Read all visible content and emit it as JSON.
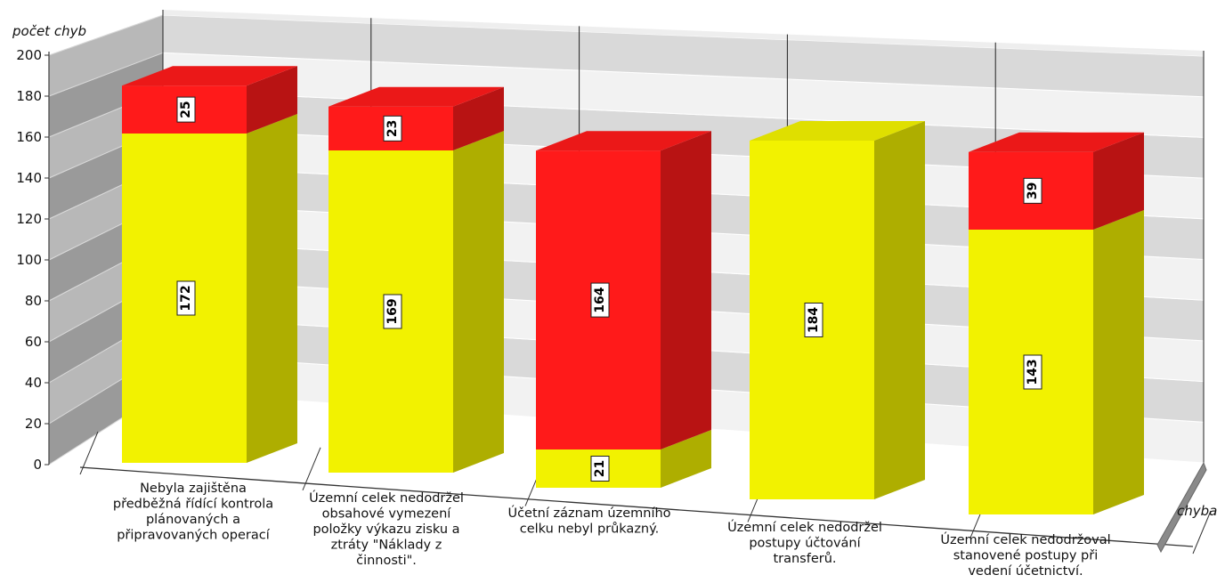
{
  "chart_data": {
    "type": "bar",
    "stacked": true,
    "three_d": true,
    "ylabel": "počet chyb",
    "xlabel": "chyba",
    "ylim": [
      0,
      200
    ],
    "yticks": [
      0,
      20,
      40,
      60,
      80,
      100,
      120,
      140,
      160,
      180,
      200
    ],
    "grid": true,
    "categories": [
      [
        "Nebyla zajištěna",
        "předběžná řídící kontrola",
        "plánovaných a",
        "připravovaných operací"
      ],
      [
        "Územní celek nedodržel",
        "obsahové vymezení",
        "položky výkazu zisku a",
        "ztráty \"Náklady z",
        "činnosti\"."
      ],
      [
        "Účetní záznam  územního",
        "celku nebyl průkazný."
      ],
      [
        "Územní celek nedodržel",
        "postupy účtování",
        "transferů."
      ],
      [
        "Územní celek nedodržoval",
        "stanovené postupy při",
        "vedení účetnictví."
      ]
    ],
    "series": [
      {
        "color": "#f2f200",
        "values": [
          172,
          169,
          21,
          184,
          143
        ]
      },
      {
        "color": "#ff1a1a",
        "values": [
          25,
          23,
          164,
          0,
          39
        ]
      }
    ]
  }
}
